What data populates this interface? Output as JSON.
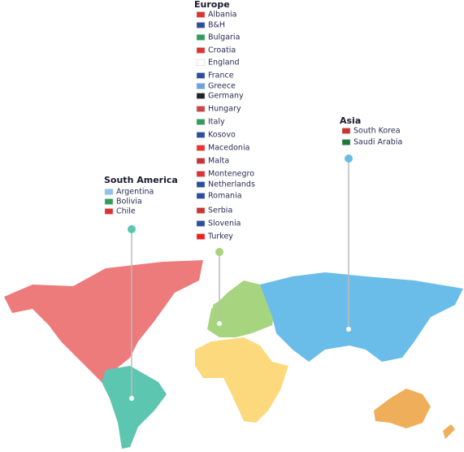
{
  "regions": [
    {
      "title": "Europe",
      "countries": [
        "Albania",
        "B&H",
        "Bulgaria",
        "Croatia",
        "England",
        "France",
        "Greece",
        "Germany",
        "Hungary",
        "Italy",
        "Kosovo",
        "Macedonia",
        "Malta",
        "Montenegro",
        "Netherlands",
        "Romania",
        "Serbia",
        "Slovenia",
        "Turkey"
      ]
    },
    {
      "title": "Asia",
      "countries": [
        "South Korea",
        "Saudi Arabia"
      ]
    },
    {
      "title": "South America",
      "countries": [
        "Argentina",
        "Bolivia",
        "Chile"
      ]
    }
  ]
}
